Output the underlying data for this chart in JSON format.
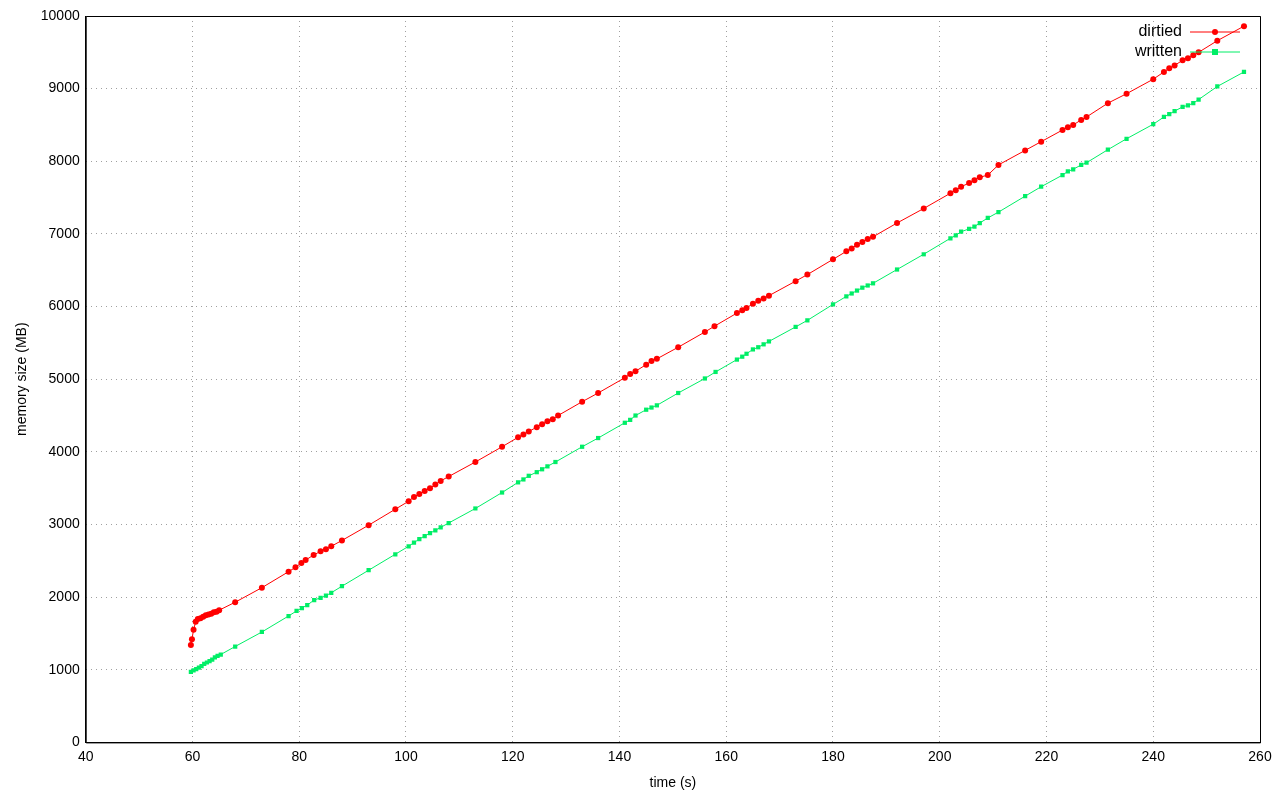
{
  "chart_data": {
    "type": "line",
    "xlabel": "time (s)",
    "ylabel": "memory size (MB)",
    "xlim": [
      40,
      260
    ],
    "xticks": [
      40,
      60,
      80,
      100,
      120,
      140,
      160,
      180,
      200,
      220,
      240,
      260
    ],
    "ylim": [
      0,
      10000
    ],
    "yticks": [
      0,
      1000,
      2000,
      3000,
      4000,
      5000,
      6000,
      7000,
      8000,
      9000,
      10000
    ],
    "grid": true,
    "legend": "top right",
    "line_style": "solid",
    "series": [
      {
        "name": "dirtied",
        "color": "#ff0000",
        "marker": "circle",
        "x": [
          59.7,
          59.9,
          60.2,
          60.6,
          61,
          61.5,
          62,
          62.5,
          63,
          63.5,
          64,
          64.5,
          65,
          68,
          73,
          78,
          79.3,
          80.4,
          81.2,
          82.7,
          84,
          85,
          86,
          88,
          93,
          98,
          100.5,
          101.5,
          102.5,
          103.5,
          104.5,
          105.5,
          106.5,
          108,
          113,
          118,
          121,
          122,
          123,
          124.5,
          125.5,
          126.5,
          127.5,
          128.5,
          133,
          136,
          141,
          142,
          143,
          145,
          146,
          147,
          151,
          156,
          157.8,
          162,
          163,
          163.8,
          165,
          166,
          167,
          168,
          173,
          175.2,
          180,
          182.5,
          183.5,
          184.5,
          185.5,
          186.5,
          187.5,
          192,
          197,
          202,
          203,
          204,
          205.5,
          206.5,
          207.5,
          209,
          211,
          216,
          219,
          223,
          224,
          225,
          226.5,
          227.5,
          231.5,
          235,
          240,
          242,
          243,
          244,
          245.5,
          246.5,
          247.5,
          248.5,
          252,
          257
        ],
        "values": [
          1340,
          1420,
          1550,
          1660,
          1700,
          1710,
          1730,
          1750,
          1760,
          1770,
          1790,
          1800,
          1820,
          1930,
          2130,
          2350,
          2410,
          2470,
          2510,
          2580,
          2630,
          2660,
          2700,
          2780,
          2990,
          3210,
          3320,
          3380,
          3420,
          3460,
          3500,
          3550,
          3600,
          3660,
          3860,
          4070,
          4200,
          4240,
          4280,
          4340,
          4380,
          4420,
          4450,
          4500,
          4690,
          4810,
          5020,
          5070,
          5110,
          5200,
          5250,
          5280,
          5440,
          5650,
          5730,
          5910,
          5950,
          5980,
          6040,
          6080,
          6110,
          6150,
          6350,
          6440,
          6650,
          6760,
          6800,
          6850,
          6890,
          6930,
          6960,
          7150,
          7350,
          7560,
          7600,
          7650,
          7700,
          7740,
          7780,
          7810,
          7950,
          8150,
          8270,
          8430,
          8470,
          8500,
          8570,
          8610,
          8800,
          8930,
          9130,
          9230,
          9280,
          9320,
          9390,
          9420,
          9460,
          9500,
          9660,
          9860
        ]
      },
      {
        "name": "written",
        "color": "#00ee66",
        "marker": "square",
        "x": [
          59.7,
          60.2,
          60.7,
          61.2,
          61.7,
          62.2,
          62.7,
          63.2,
          63.7,
          64.2,
          64.7,
          65.3,
          68,
          73,
          78,
          79.5,
          80.5,
          81.5,
          82.8,
          84,
          85,
          86,
          88,
          93,
          98,
          100.5,
          101.5,
          102.5,
          103.5,
          104.5,
          105.5,
          106.5,
          108,
          113,
          118,
          121,
          122,
          123,
          124.5,
          125.5,
          126.5,
          128,
          133,
          136,
          141,
          142,
          143,
          145,
          146,
          147,
          151,
          156,
          158,
          162,
          163,
          163.8,
          165,
          166,
          167,
          168,
          173,
          175.2,
          180,
          182.5,
          183.5,
          184.5,
          185.5,
          186.5,
          187.5,
          192,
          197,
          202,
          203,
          204,
          205.5,
          206.5,
          207.5,
          209,
          211,
          216,
          219,
          223,
          224,
          225,
          226.5,
          227.5,
          231.5,
          235,
          240,
          242,
          243,
          244,
          245.5,
          246.5,
          247.5,
          248.5,
          252,
          257
        ],
        "values": [
          970,
          990,
          1010,
          1030,
          1050,
          1080,
          1100,
          1120,
          1140,
          1170,
          1190,
          1210,
          1320,
          1520,
          1740,
          1810,
          1850,
          1890,
          1960,
          1990,
          2020,
          2060,
          2150,
          2370,
          2590,
          2700,
          2750,
          2800,
          2840,
          2880,
          2920,
          2960,
          3020,
          3220,
          3440,
          3580,
          3620,
          3670,
          3720,
          3760,
          3800,
          3860,
          4070,
          4190,
          4400,
          4440,
          4500,
          4580,
          4610,
          4640,
          4810,
          5010,
          5100,
          5270,
          5310,
          5350,
          5410,
          5440,
          5480,
          5520,
          5720,
          5810,
          6030,
          6140,
          6180,
          6220,
          6260,
          6290,
          6320,
          6510,
          6720,
          6940,
          6980,
          7030,
          7070,
          7100,
          7150,
          7220,
          7300,
          7520,
          7650,
          7810,
          7860,
          7890,
          7950,
          7980,
          8160,
          8310,
          8510,
          8610,
          8650,
          8690,
          8750,
          8770,
          8800,
          8850,
          9030,
          9230
        ]
      }
    ]
  }
}
